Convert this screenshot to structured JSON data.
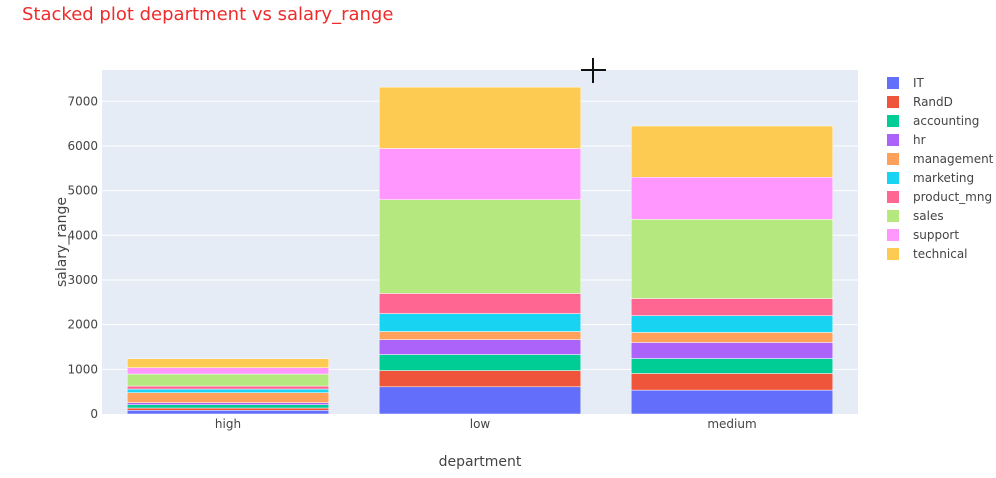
{
  "chart_data": {
    "type": "bar",
    "stacked": true,
    "title": "Stacked plot department vs salary_range",
    "title_color": "#ef2b2b",
    "xlabel": "department",
    "ylabel": "salary_range",
    "categories": [
      "high",
      "low",
      "medium"
    ],
    "ylim": [
      0,
      7700
    ],
    "yticks": [
      0,
      1000,
      2000,
      3000,
      4000,
      5000,
      6000,
      7000
    ],
    "grid": true,
    "plot_bg": "#e5ecf6",
    "legend_position": "right",
    "series": [
      {
        "name": "IT",
        "color": "#636efa",
        "values": [
          83,
          609,
          535
        ]
      },
      {
        "name": "RandD",
        "color": "#ef553b",
        "values": [
          51,
          364,
          372
        ]
      },
      {
        "name": "accounting",
        "color": "#00cc96",
        "values": [
          74,
          358,
          335
        ]
      },
      {
        "name": "hr",
        "color": "#ab63fa",
        "values": [
          45,
          335,
          359
        ]
      },
      {
        "name": "management",
        "color": "#ffa15a",
        "values": [
          225,
          180,
          225
        ]
      },
      {
        "name": "marketing",
        "color": "#19d3f3",
        "values": [
          80,
          402,
          376
        ]
      },
      {
        "name": "product_mng",
        "color": "#ff6692",
        "values": [
          68,
          451,
          383
        ]
      },
      {
        "name": "sales",
        "color": "#b6e880",
        "values": [
          269,
          2099,
          1772
        ]
      },
      {
        "name": "support",
        "color": "#ff97ff",
        "values": [
          141,
          1146,
          942
        ]
      },
      {
        "name": "technical",
        "color": "#fecb52",
        "values": [
          201,
          1372,
          1147
        ]
      }
    ]
  }
}
